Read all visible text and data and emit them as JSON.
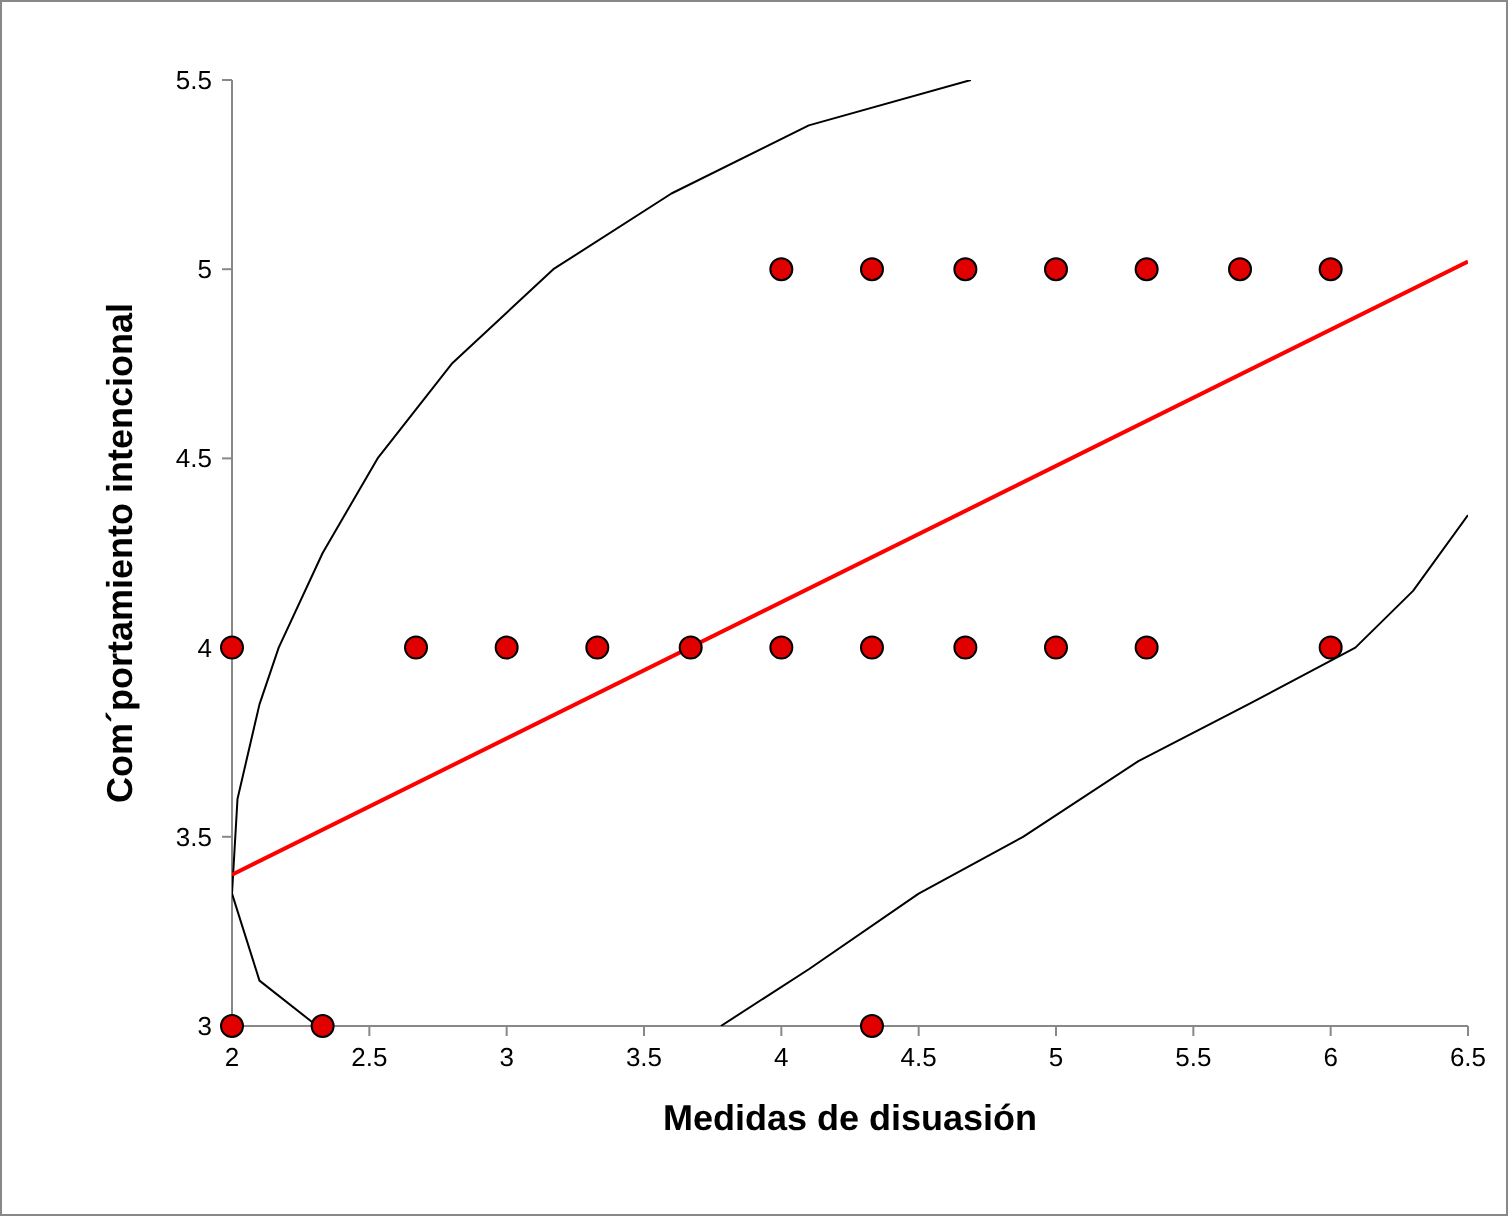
{
  "chart_data": {
    "type": "scatter",
    "xlabel": "Medidas de disuasión",
    "ylabel": "Com´portamiento intencional",
    "xlim": [
      2,
      6.5
    ],
    "ylim": [
      3,
      5.5
    ],
    "xticks": [
      2,
      2.5,
      3,
      3.5,
      4,
      4.5,
      5,
      5.5,
      6,
      6.5
    ],
    "yticks": [
      3,
      3.5,
      4,
      4.5,
      5,
      5.5
    ],
    "grid": false,
    "series": [
      {
        "type": "line",
        "color": "#000000",
        "marker": "none",
        "x": [
          2.31,
          2.1,
          2.0,
          2.02,
          2.1,
          2.17,
          2.33,
          2.53,
          2.8,
          3.17,
          3.6,
          4.1,
          4.69
        ],
        "values": [
          3,
          3.12,
          3.35,
          3.6,
          3.85,
          4,
          4.25,
          4.5,
          4.75,
          5,
          5.2,
          5.38,
          5.5
        ]
      },
      {
        "type": "line",
        "color": "#000000",
        "marker": "none",
        "x": [
          3.78,
          4.1,
          4.5,
          4.88,
          5.3,
          5.7,
          6.09,
          6.3,
          6.5
        ],
        "values": [
          3,
          3.15,
          3.35,
          3.5,
          3.7,
          3.85,
          4,
          4.15,
          4.35
        ]
      },
      {
        "type": "line",
        "color": "#ff0000",
        "marker": "none",
        "x": [
          2,
          6.5
        ],
        "values": [
          3.4,
          5.02
        ]
      },
      {
        "type": "scatter",
        "color": "#e00000",
        "marker": "circle",
        "x": [
          4,
          4.33,
          4.67,
          5,
          5.33,
          5.67,
          6,
          2,
          2.67,
          3,
          3.33,
          3.67,
          4,
          4.33,
          4.67,
          5,
          5.33,
          6,
          2,
          2.33,
          4.33
        ],
        "values": [
          5,
          5,
          5,
          5,
          5,
          5,
          5,
          4,
          4,
          4,
          4,
          4,
          4,
          4,
          4,
          4,
          4,
          4,
          3,
          3,
          3
        ]
      }
    ]
  }
}
